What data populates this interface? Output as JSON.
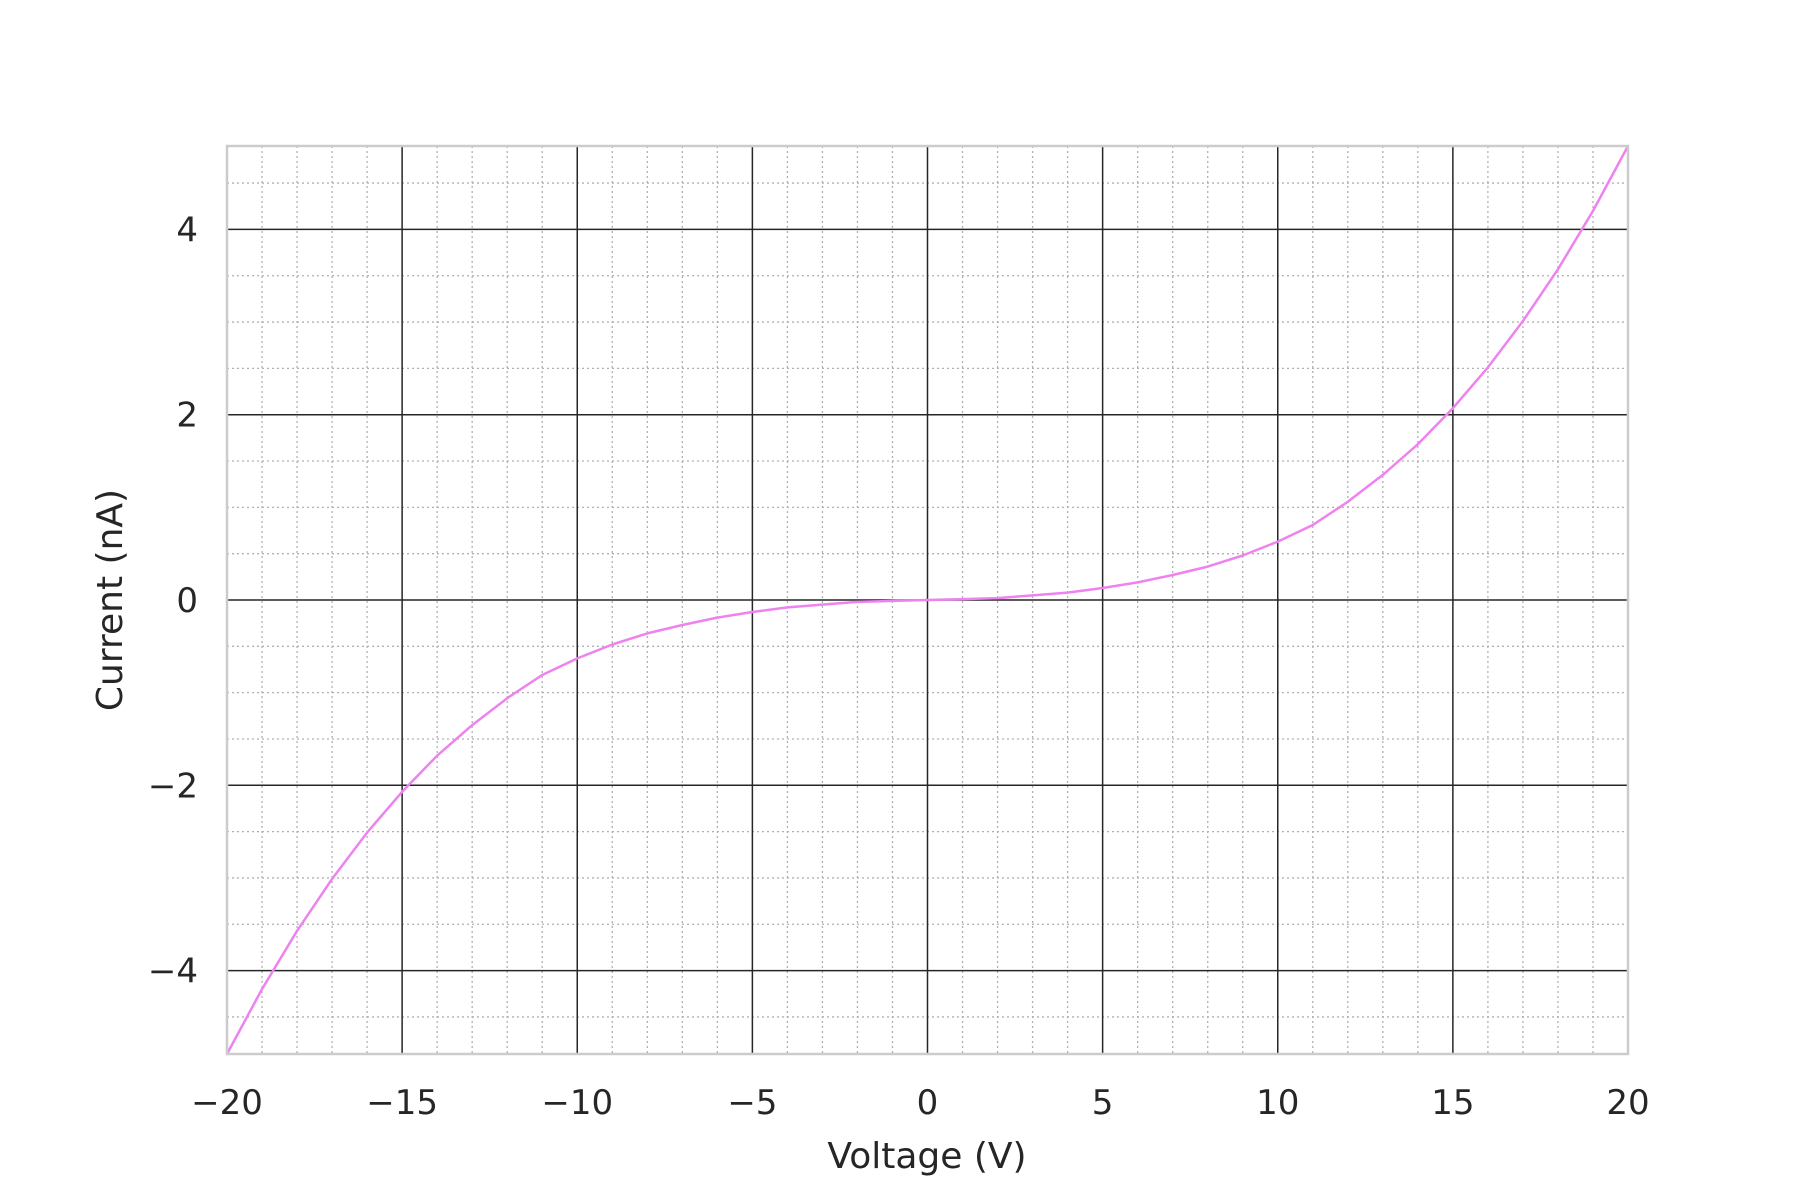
{
  "colors": {
    "line": "#ee82ee",
    "major_grid": "#262626",
    "minor_grid": "#b0b0b0",
    "frame": "#cccccc",
    "text": "#262626",
    "background": "#ffffff"
  },
  "chart_data": {
    "type": "line",
    "title": "",
    "xlabel": "Voltage (V)",
    "ylabel": "Current (nA)",
    "xlim": [
      -20,
      20
    ],
    "ylim": [
      -4.9,
      4.9
    ],
    "x_ticks": [
      -20,
      -15,
      -10,
      -5,
      0,
      5,
      10,
      15,
      20
    ],
    "x_tick_labels": [
      "−20",
      "−15",
      "−10",
      "−5",
      "0",
      "5",
      "10",
      "15",
      "20"
    ],
    "y_ticks": [
      -4,
      -2,
      0,
      2,
      4
    ],
    "y_tick_labels": [
      "−4",
      "−2",
      "0",
      "2",
      "4"
    ],
    "x_minor_step": 1,
    "y_minor_step": 0.5,
    "grid": {
      "major": true,
      "minor": true,
      "minor_style": "dotted"
    },
    "legend": "none",
    "series": [
      {
        "x": [
          -20,
          -19,
          -18,
          -17,
          -16,
          -15,
          -14,
          -13,
          -12,
          -11,
          -10,
          -9,
          -8,
          -7,
          -6,
          -5,
          -4,
          -3,
          -2,
          -1,
          0,
          1,
          2,
          3,
          4,
          5,
          6,
          7,
          8,
          9,
          10,
          11,
          12,
          13,
          14,
          15,
          16,
          17,
          18,
          19,
          20
        ],
        "y": [
          -4.9,
          -4.2,
          -3.57,
          -3.01,
          -2.51,
          -2.07,
          -1.68,
          -1.35,
          -1.06,
          -0.81,
          -0.63,
          -0.48,
          -0.36,
          -0.27,
          -0.19,
          -0.13,
          -0.08,
          -0.05,
          -0.02,
          -0.01,
          0,
          0.01,
          0.02,
          0.05,
          0.08,
          0.13,
          0.19,
          0.27,
          0.36,
          0.48,
          0.63,
          0.81,
          1.06,
          1.35,
          1.68,
          2.07,
          2.51,
          3.01,
          3.57,
          4.2,
          4.9
        ]
      }
    ]
  }
}
